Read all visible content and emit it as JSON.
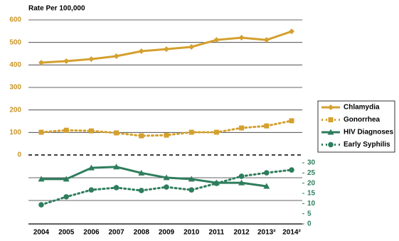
{
  "chart_data": {
    "type": "line",
    "ylabel": "Rate Per 100,000",
    "categories": [
      "2004",
      "2005",
      "2006",
      "2007",
      "2008",
      "2009",
      "2010",
      "2011",
      "2012",
      "2013²",
      "2014²"
    ],
    "ylim": [
      0,
      600
    ],
    "yticks": [
      0,
      100,
      200,
      300,
      400,
      500,
      600
    ],
    "ytick_color": "#c9962a",
    "y2lim": [
      0,
      30
    ],
    "y2ticks": [
      0,
      5,
      10,
      15,
      20,
      25,
      30
    ],
    "y2tick_color": "#2e7d5c",
    "grid": true,
    "legend": "right",
    "series": [
      {
        "name": "Chlamydia",
        "color": "#d4a02e",
        "marker": "diamond",
        "dash": "solid",
        "values": [
          410,
          417,
          426,
          439,
          461,
          470,
          480,
          511,
          521,
          511,
          549
        ]
      },
      {
        "name": "Gonorrhea",
        "color": "#d4a02e",
        "marker": "square",
        "dash": "dotted",
        "values": [
          101,
          110,
          107,
          98,
          85,
          88,
          101,
          101,
          120,
          129,
          152
        ]
      },
      {
        "name": "HIV Diagnoses",
        "color": "#2e7d5c",
        "marker": "triangle",
        "dash": "solid",
        "axis": "y2",
        "values": [
          22,
          22,
          27.5,
          28,
          25,
          22.7,
          22,
          20.2,
          20.2,
          18.5,
          null
        ]
      },
      {
        "name": "Early Syphilis",
        "color": "#2e7d5c",
        "marker": "circle",
        "dash": "dotted",
        "axis": "y2",
        "values": [
          9.4,
          13.3,
          16.7,
          17.8,
          16.4,
          18.1,
          16.7,
          19.9,
          23.4,
          25.1,
          26.5
        ]
      }
    ]
  }
}
